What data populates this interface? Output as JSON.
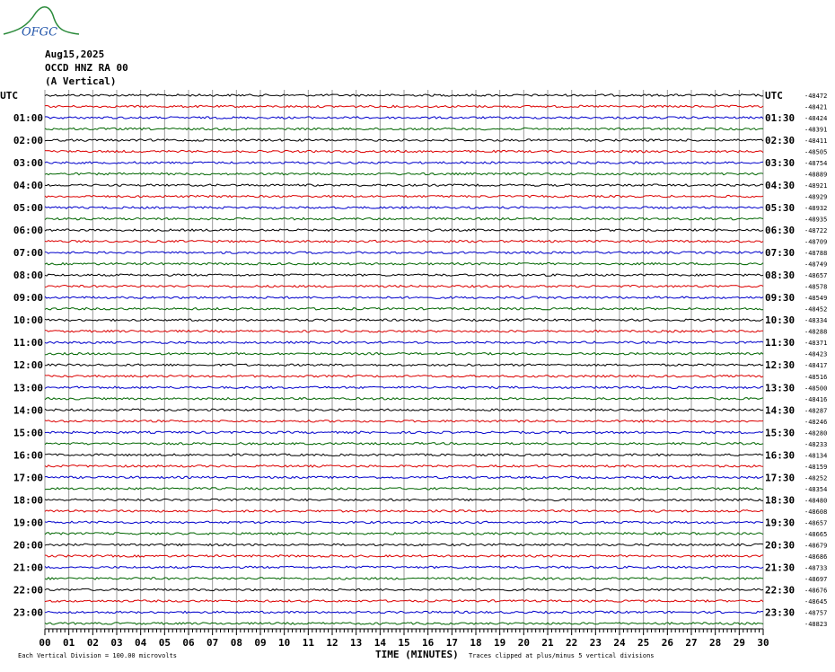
{
  "header": {
    "logo": "OFGC",
    "date": "Aug15,2025",
    "station": "OCCD HNZ RA 00",
    "component": "(A Vertical)"
  },
  "left_labels": [
    "UTC",
    "01:00",
    "02:00",
    "03:00",
    "04:00",
    "05:00",
    "06:00",
    "07:00",
    "08:00",
    "09:00",
    "10:00",
    "11:00",
    "12:00",
    "13:00",
    "14:00",
    "15:00",
    "16:00",
    "17:00",
    "18:00",
    "19:00",
    "20:00",
    "21:00",
    "22:00",
    "23:00"
  ],
  "right_labels": [
    "UTC",
    "01:30",
    "02:30",
    "03:30",
    "04:30",
    "05:30",
    "06:30",
    "07:30",
    "08:30",
    "09:30",
    "10:30",
    "11:30",
    "12:30",
    "13:30",
    "14:30",
    "15:30",
    "16:30",
    "17:30",
    "18:30",
    "19:30",
    "20:30",
    "21:30",
    "22:30",
    "23:30"
  ],
  "trace_offsets": [
    "-48472",
    "-48421",
    "-48424",
    "-48391",
    "-48411",
    "-48505",
    "-48754",
    "-48889",
    "-48921",
    "-48929",
    "-48932",
    "-48935",
    "-48722",
    "-48709",
    "-48788",
    "-48749",
    "-48657",
    "-48578",
    "-48549",
    "-48452",
    "-48334",
    "-48288",
    "-48371",
    "-48423",
    "-48417",
    "-48516",
    "-48500",
    "-48416",
    "-48287",
    "-48246",
    "-48280",
    "-48233",
    "-48134",
    "-48159",
    "-48252",
    "-48354",
    "-48480",
    "-48608",
    "-48657",
    "-48665",
    "-48679",
    "-48686",
    "-48733",
    "-48697",
    "-48676",
    "-48645",
    "-48757",
    "-48823"
  ],
  "x_ticks": [
    "00",
    "01",
    "02",
    "03",
    "04",
    "05",
    "06",
    "07",
    "08",
    "09",
    "10",
    "11",
    "12",
    "13",
    "14",
    "15",
    "16",
    "17",
    "18",
    "19",
    "20",
    "21",
    "22",
    "23",
    "24",
    "25",
    "26",
    "27",
    "28",
    "29",
    "30"
  ],
  "x_axis_label": "TIME (MINUTES)",
  "footer": {
    "scale": "Each Vertical Division =  100.00 microvolts",
    "clip": "Traces clipped at plus/minus 5 vertical divisions"
  }
}
